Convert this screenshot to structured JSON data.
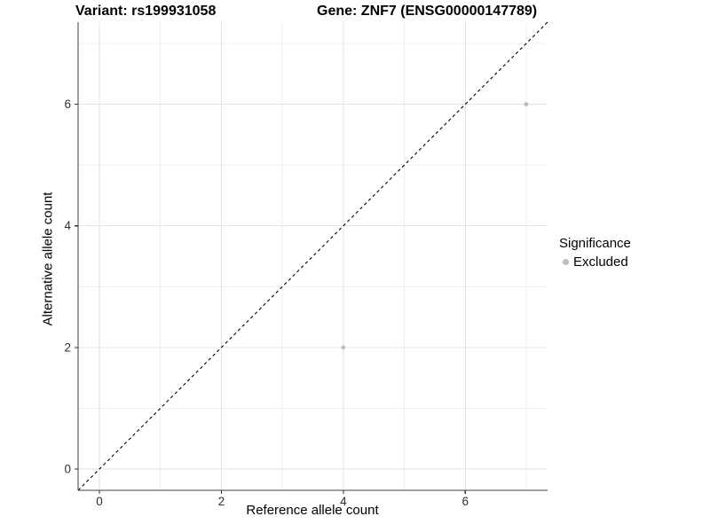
{
  "title": {
    "variant": "Variant: rs199931058",
    "gene": "Gene: ZNF7 (ENSG00000147789)"
  },
  "axes": {
    "x_label": "Reference allele count",
    "y_label": "Alternative allele count"
  },
  "legend": {
    "title": "Significance",
    "items": [
      {
        "label": "Excluded",
        "color": "#bdbdbd"
      }
    ]
  },
  "colors": {
    "point": "#bdbdbd",
    "reference_line": "#000000",
    "grid_major": "#e3e3e3",
    "grid_minor": "#f0f0f0",
    "axis": "#404040",
    "tick_text": "#303030"
  },
  "chart_data": {
    "type": "scatter",
    "title": "Variant: rs199931058   Gene: ZNF7 (ENSG00000147789)",
    "xlabel": "Reference allele count",
    "ylabel": "Alternative allele count",
    "xlim": [
      -0.35,
      7.35
    ],
    "ylim": [
      -0.35,
      7.35
    ],
    "x_major_ticks": [
      0,
      2,
      4,
      6
    ],
    "x_minor_ticks": [
      1,
      3,
      5,
      7
    ],
    "y_major_ticks": [
      0,
      2,
      4,
      6
    ],
    "y_minor_ticks": [
      1,
      3,
      5,
      7
    ],
    "grid": true,
    "legend_position": "right",
    "series": [
      {
        "name": "Excluded",
        "color": "#bdbdbd",
        "points": [
          {
            "x": 4,
            "y": 2
          },
          {
            "x": 7,
            "y": 6
          }
        ]
      }
    ],
    "reference_line": {
      "type": "identity",
      "style": "dashed",
      "from": [
        -0.35,
        -0.35
      ],
      "to": [
        7.35,
        7.35
      ]
    }
  }
}
